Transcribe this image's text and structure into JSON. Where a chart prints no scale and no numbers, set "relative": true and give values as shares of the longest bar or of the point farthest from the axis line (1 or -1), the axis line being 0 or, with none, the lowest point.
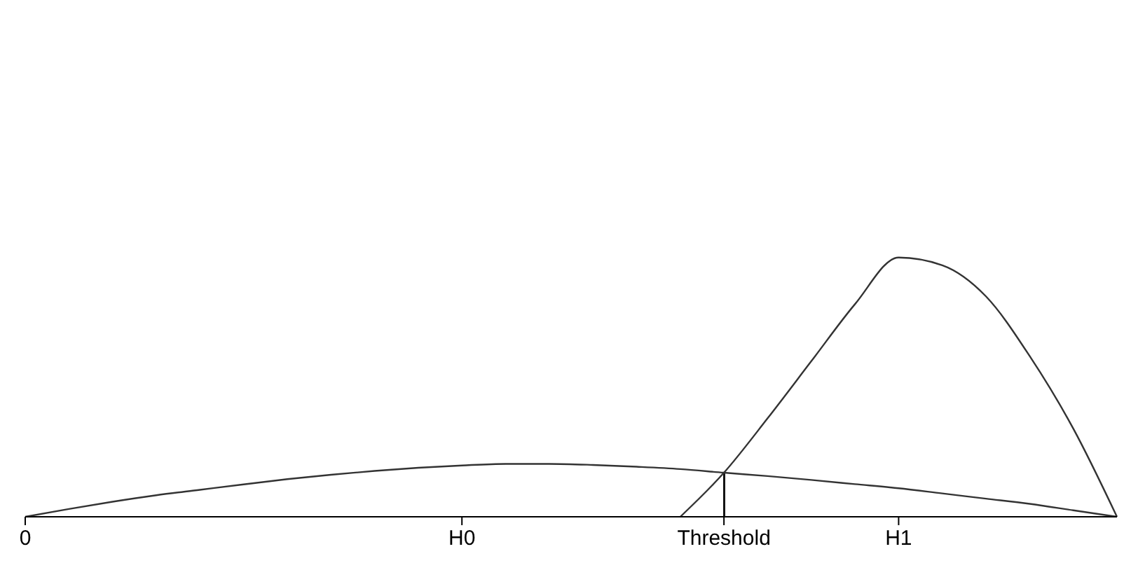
{
  "chart_data": {
    "type": "line",
    "relative": true,
    "marker": "none",
    "categories": [
      "0",
      null,
      null,
      null,
      null,
      null,
      null,
      null,
      null,
      null,
      "H0",
      null,
      null,
      null,
      null,
      null,
      "Threshold",
      null,
      null,
      null,
      "H1",
      null,
      null,
      null,
      null,
      null
    ],
    "series": [
      {
        "color": "#333333",
        "values": [
          0,
          0.03,
          0.058,
          0.083,
          0.104,
          0.125,
          0.145,
          0.162,
          0.177,
          0.189,
          0.198,
          0.204,
          0.204,
          0.2,
          0.193,
          0.184,
          0.17,
          0.157,
          0.142,
          0.126,
          0.11,
          0.09,
          0.07,
          0.05,
          0.025,
          0
        ]
      },
      {
        "color": "#333333",
        "values": [
          null,
          null,
          null,
          null,
          null,
          null,
          null,
          null,
          null,
          null,
          null,
          null,
          null,
          null,
          null,
          0,
          0.17,
          0.38,
          0.6,
          0.82,
          1,
          0.97,
          0.85,
          0.62,
          0.34,
          0
        ]
      },
      {
        "type": "bar",
        "color": "#111111",
        "values": [
          null,
          null,
          null,
          null,
          null,
          null,
          null,
          null,
          null,
          null,
          null,
          null,
          null,
          null,
          null,
          null,
          0.17,
          null,
          null,
          null,
          null,
          null,
          null,
          null,
          null,
          null
        ]
      }
    ]
  }
}
